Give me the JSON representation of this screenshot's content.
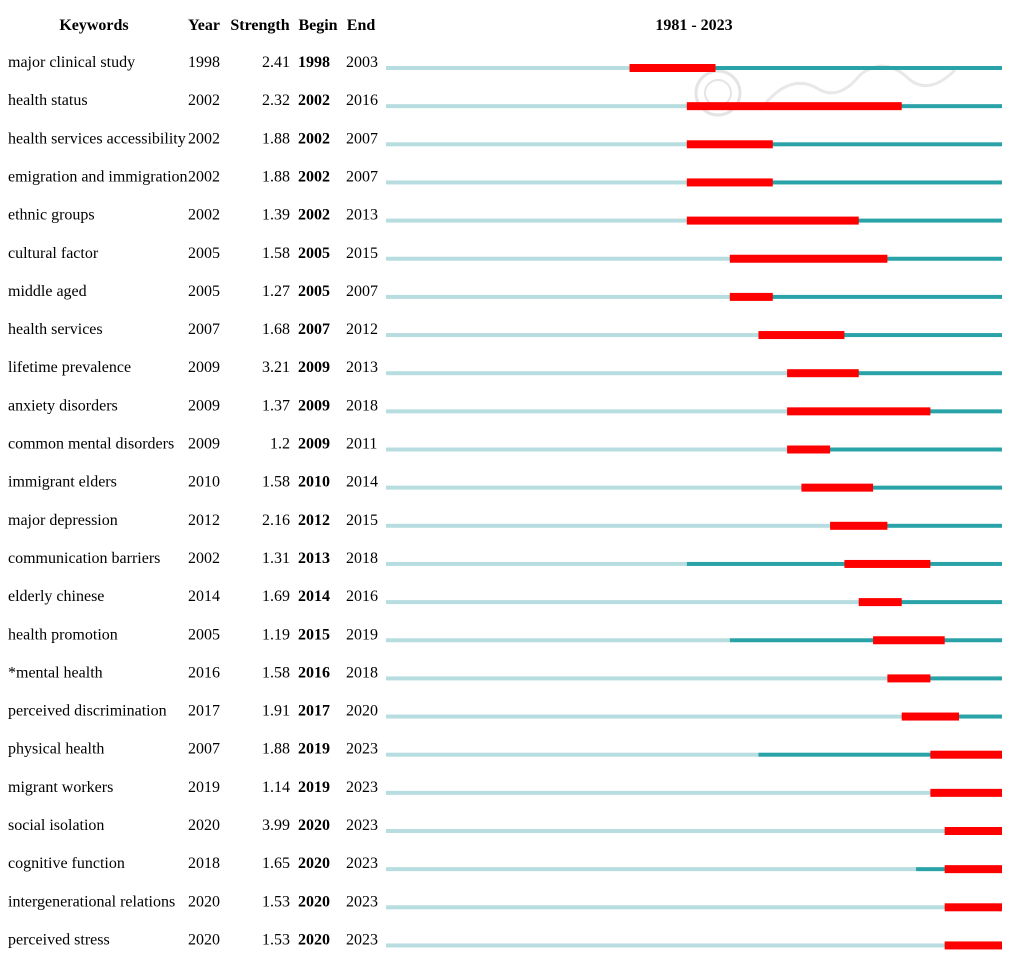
{
  "headers": {
    "keywords": "Keywords",
    "year": "Year",
    "strength": "Strength",
    "begin": "Begin",
    "end": "End",
    "range": "1981 - 2023"
  },
  "colors": {
    "pre_period": "#b7dde0",
    "active_period": "#2aa3a8",
    "burst": "#ff0000"
  },
  "chart_data": {
    "type": "burst-timeline",
    "x_range": [
      1981,
      2023
    ],
    "rows": [
      {
        "keyword": "major clinical study",
        "year": 1998,
        "strength": "2.41",
        "begin": 1998,
        "end": 2003
      },
      {
        "keyword": "health status",
        "year": 2002,
        "strength": "2.32",
        "begin": 2002,
        "end": 2016
      },
      {
        "keyword": "health services accessibility",
        "year": 2002,
        "strength": "1.88",
        "begin": 2002,
        "end": 2007
      },
      {
        "keyword": "emigration and immigration",
        "year": 2002,
        "strength": "1.88",
        "begin": 2002,
        "end": 2007
      },
      {
        "keyword": "ethnic groups",
        "year": 2002,
        "strength": "1.39",
        "begin": 2002,
        "end": 2013
      },
      {
        "keyword": "cultural factor",
        "year": 2005,
        "strength": "1.58",
        "begin": 2005,
        "end": 2015
      },
      {
        "keyword": "middle aged",
        "year": 2005,
        "strength": "1.27",
        "begin": 2005,
        "end": 2007
      },
      {
        "keyword": "health services",
        "year": 2007,
        "strength": "1.68",
        "begin": 2007,
        "end": 2012
      },
      {
        "keyword": "lifetime prevalence",
        "year": 2009,
        "strength": "3.21",
        "begin": 2009,
        "end": 2013
      },
      {
        "keyword": "anxiety disorders",
        "year": 2009,
        "strength": "1.37",
        "begin": 2009,
        "end": 2018
      },
      {
        "keyword": "common mental disorders",
        "year": 2009,
        "strength": "1.2",
        "begin": 2009,
        "end": 2011
      },
      {
        "keyword": "immigrant elders",
        "year": 2010,
        "strength": "1.58",
        "begin": 2010,
        "end": 2014
      },
      {
        "keyword": "major depression",
        "year": 2012,
        "strength": "2.16",
        "begin": 2012,
        "end": 2015
      },
      {
        "keyword": "communication barriers",
        "year": 2002,
        "strength": "1.31",
        "begin": 2013,
        "end": 2018
      },
      {
        "keyword": "elderly chinese",
        "year": 2014,
        "strength": "1.69",
        "begin": 2014,
        "end": 2016
      },
      {
        "keyword": "health promotion",
        "year": 2005,
        "strength": "1.19",
        "begin": 2015,
        "end": 2019
      },
      {
        "keyword": "*mental health",
        "year": 2016,
        "strength": "1.58",
        "begin": 2016,
        "end": 2018
      },
      {
        "keyword": "perceived discrimination",
        "year": 2017,
        "strength": "1.91",
        "begin": 2017,
        "end": 2020
      },
      {
        "keyword": "physical health",
        "year": 2007,
        "strength": "1.88",
        "begin": 2019,
        "end": 2023
      },
      {
        "keyword": "migrant workers",
        "year": 2019,
        "strength": "1.14",
        "begin": 2019,
        "end": 2023
      },
      {
        "keyword": "social isolation",
        "year": 2020,
        "strength": "3.99",
        "begin": 2020,
        "end": 2023
      },
      {
        "keyword": "cognitive function",
        "year": 2018,
        "strength": "1.65",
        "begin": 2020,
        "end": 2023
      },
      {
        "keyword": "intergenerational relations",
        "year": 2020,
        "strength": "1.53",
        "begin": 2020,
        "end": 2023
      },
      {
        "keyword": "perceived stress",
        "year": 2020,
        "strength": "1.53",
        "begin": 2020,
        "end": 2023
      }
    ]
  }
}
